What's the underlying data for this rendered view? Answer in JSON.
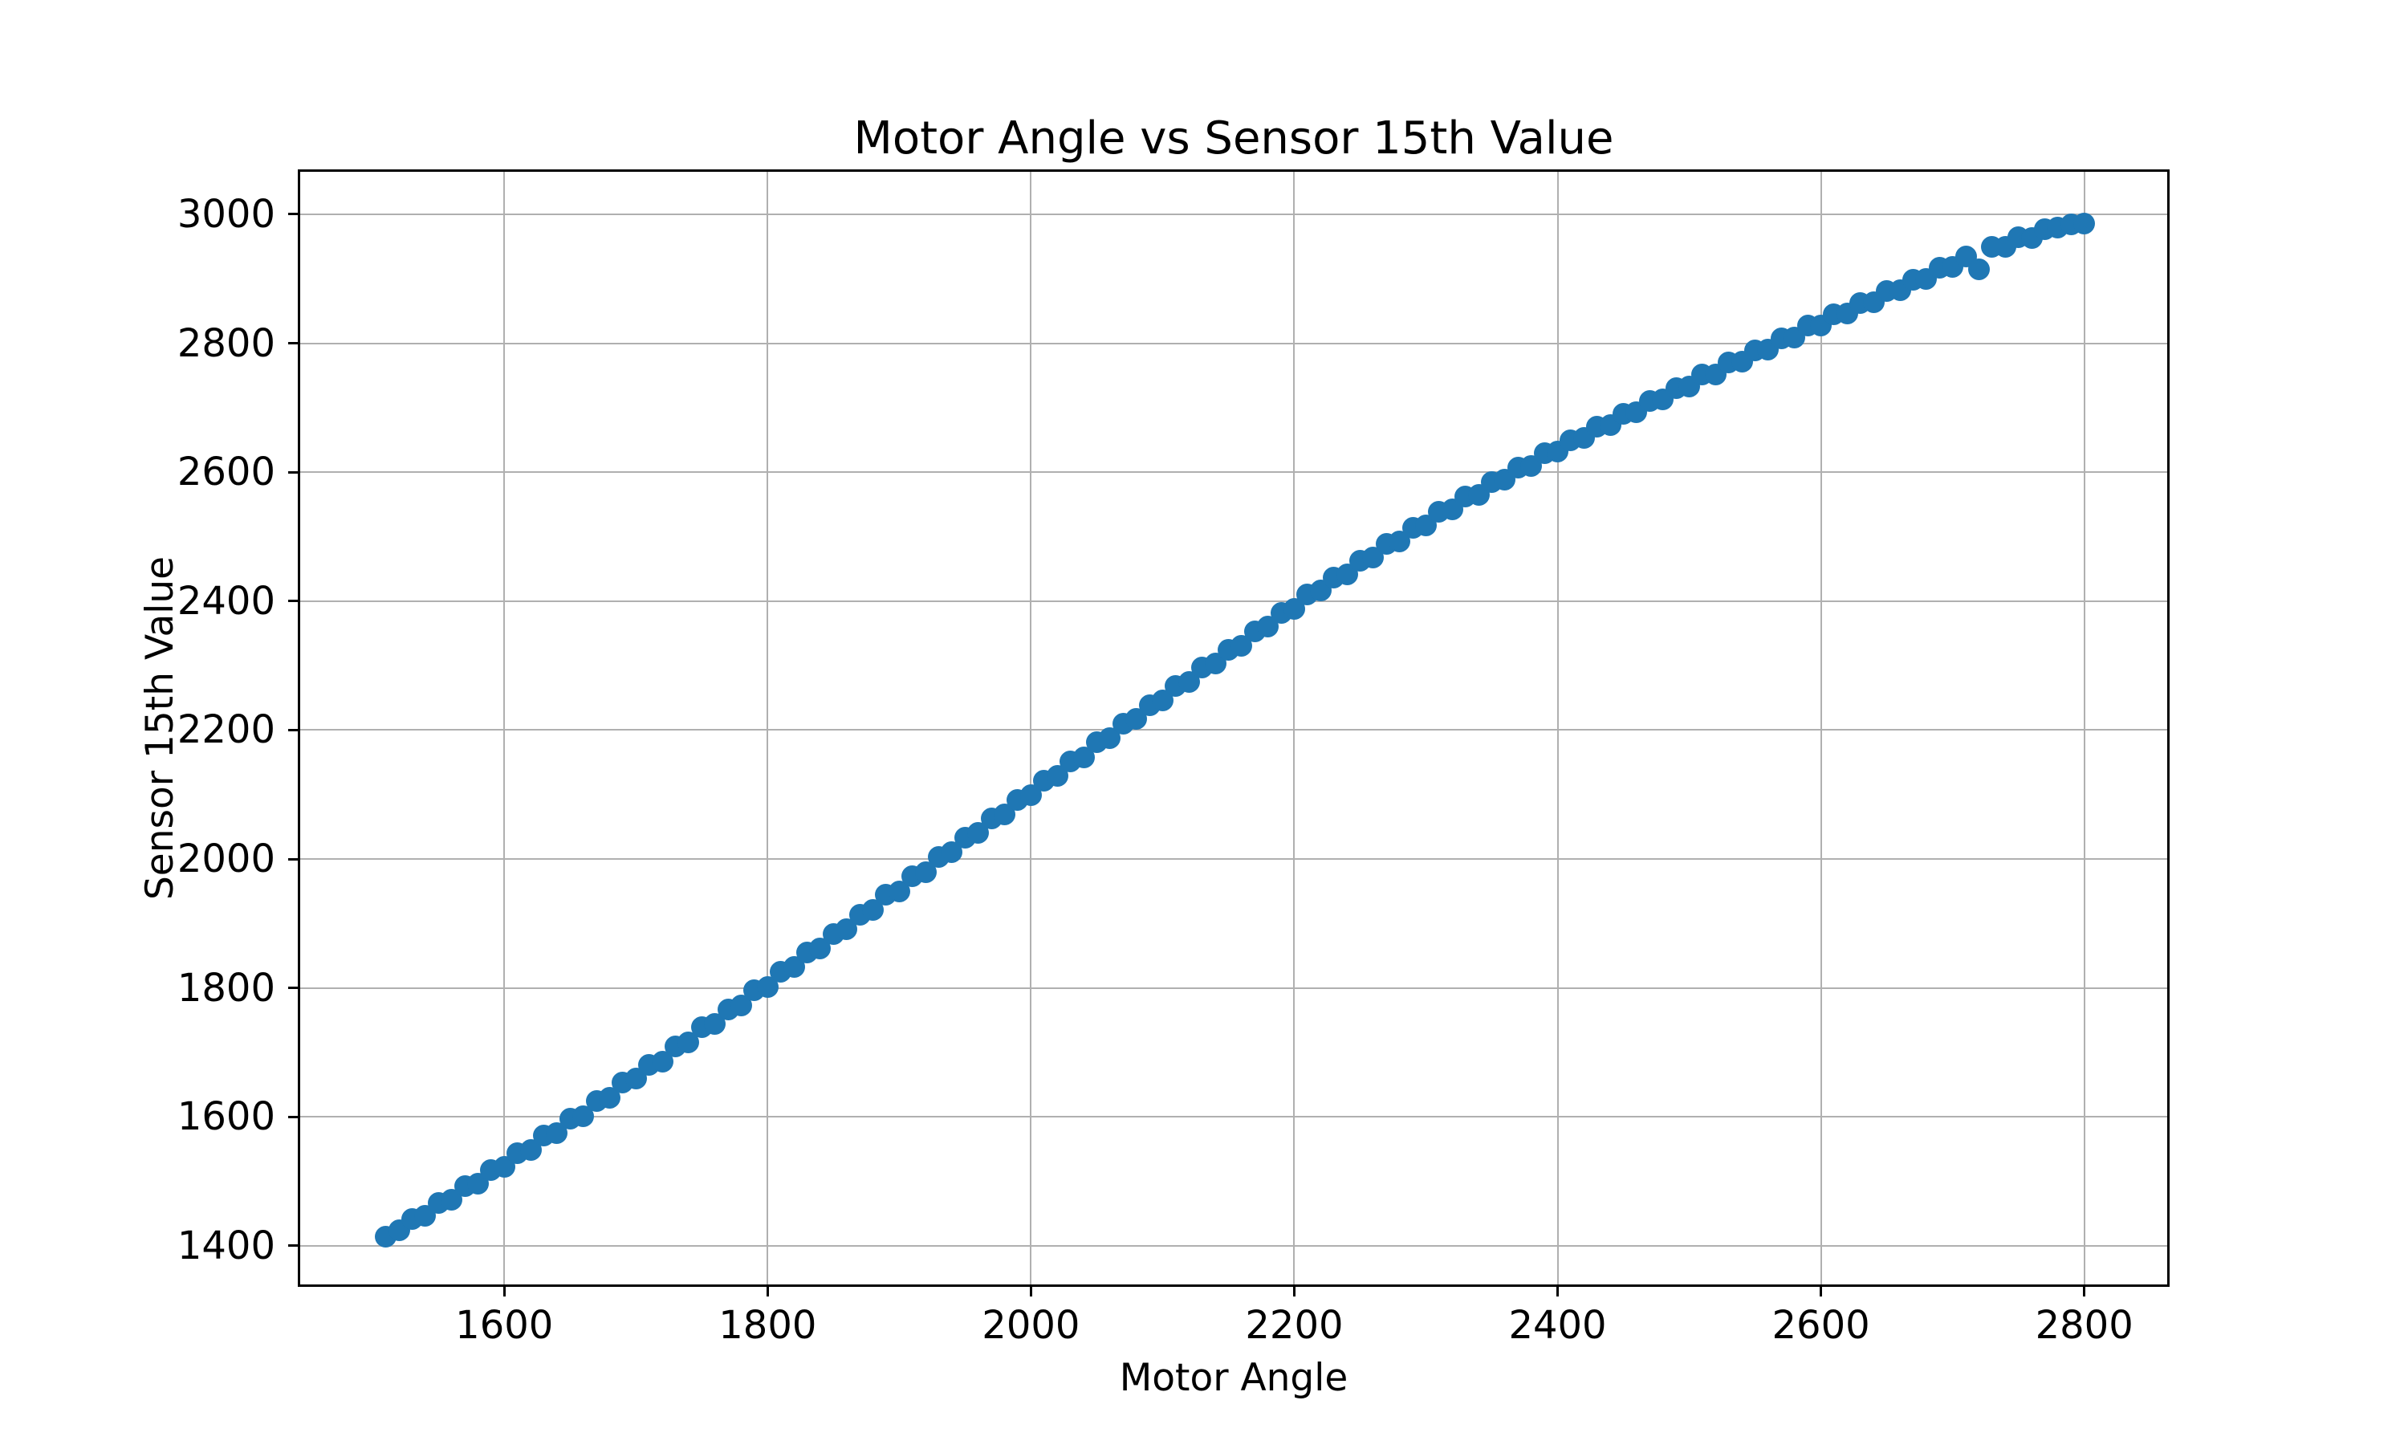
{
  "figure": {
    "background": "#ffffff"
  },
  "chart_data": {
    "type": "scatter",
    "title": "Motor Angle vs Sensor 15th Value",
    "xlabel": "Motor Angle",
    "ylabel": "Sensor 15th Value",
    "xlim": [
      1445,
      2863
    ],
    "ylim": [
      1340,
      3066
    ],
    "xticks": [
      1600,
      1800,
      2000,
      2200,
      2400,
      2600,
      2800
    ],
    "yticks": [
      1400,
      1600,
      1800,
      2000,
      2200,
      2400,
      2600,
      2800,
      3000
    ],
    "grid": true,
    "legend": null,
    "grid_color": "#b0b0b0",
    "marker_color": "#1f77b4",
    "marker_diameter_px": 27,
    "points": [
      [
        1510,
        1414
      ],
      [
        1520,
        1424
      ],
      [
        1530,
        1441
      ],
      [
        1540,
        1447
      ],
      [
        1550,
        1467
      ],
      [
        1560,
        1471
      ],
      [
        1570,
        1492
      ],
      [
        1580,
        1496
      ],
      [
        1590,
        1517
      ],
      [
        1600,
        1522
      ],
      [
        1610,
        1543
      ],
      [
        1620,
        1549
      ],
      [
        1630,
        1571
      ],
      [
        1640,
        1575
      ],
      [
        1650,
        1597
      ],
      [
        1660,
        1601
      ],
      [
        1670,
        1624
      ],
      [
        1680,
        1630
      ],
      [
        1690,
        1653
      ],
      [
        1700,
        1659
      ],
      [
        1710,
        1680
      ],
      [
        1720,
        1686
      ],
      [
        1730,
        1709
      ],
      [
        1740,
        1715
      ],
      [
        1750,
        1739
      ],
      [
        1760,
        1744
      ],
      [
        1770,
        1767
      ],
      [
        1780,
        1773
      ],
      [
        1790,
        1796
      ],
      [
        1800,
        1802
      ],
      [
        1810,
        1825
      ],
      [
        1820,
        1832
      ],
      [
        1830,
        1855
      ],
      [
        1840,
        1861
      ],
      [
        1850,
        1884
      ],
      [
        1860,
        1891
      ],
      [
        1870,
        1914
      ],
      [
        1880,
        1921
      ],
      [
        1890,
        1944
      ],
      [
        1900,
        1950
      ],
      [
        1910,
        1973
      ],
      [
        1920,
        1980
      ],
      [
        1930,
        2003
      ],
      [
        1940,
        2010
      ],
      [
        1950,
        2033
      ],
      [
        1960,
        2040
      ],
      [
        1970,
        2063
      ],
      [
        1980,
        2069
      ],
      [
        1990,
        2092
      ],
      [
        2000,
        2099
      ],
      [
        2010,
        2122
      ],
      [
        2020,
        2129
      ],
      [
        2030,
        2151
      ],
      [
        2040,
        2158
      ],
      [
        2050,
        2181
      ],
      [
        2060,
        2187
      ],
      [
        2070,
        2210
      ],
      [
        2080,
        2217
      ],
      [
        2090,
        2239
      ],
      [
        2100,
        2246
      ],
      [
        2110,
        2268
      ],
      [
        2120,
        2274
      ],
      [
        2130,
        2297
      ],
      [
        2140,
        2303
      ],
      [
        2150,
        2325
      ],
      [
        2160,
        2331
      ],
      [
        2170,
        2353
      ],
      [
        2180,
        2360
      ],
      [
        2190,
        2382
      ],
      [
        2200,
        2388
      ],
      [
        2210,
        2410
      ],
      [
        2220,
        2416
      ],
      [
        2230,
        2437
      ],
      [
        2240,
        2442
      ],
      [
        2250,
        2463
      ],
      [
        2260,
        2468
      ],
      [
        2270,
        2489
      ],
      [
        2280,
        2493
      ],
      [
        2290,
        2514
      ],
      [
        2300,
        2518
      ],
      [
        2310,
        2538
      ],
      [
        2320,
        2542
      ],
      [
        2330,
        2562
      ],
      [
        2340,
        2565
      ],
      [
        2350,
        2585
      ],
      [
        2360,
        2588
      ],
      [
        2370,
        2607
      ],
      [
        2380,
        2610
      ],
      [
        2390,
        2629
      ],
      [
        2400,
        2632
      ],
      [
        2410,
        2650
      ],
      [
        2420,
        2653
      ],
      [
        2430,
        2671
      ],
      [
        2440,
        2673
      ],
      [
        2450,
        2691
      ],
      [
        2460,
        2693
      ],
      [
        2470,
        2711
      ],
      [
        2480,
        2713
      ],
      [
        2490,
        2731
      ],
      [
        2500,
        2733
      ],
      [
        2510,
        2751
      ],
      [
        2520,
        2752
      ],
      [
        2530,
        2770
      ],
      [
        2540,
        2771
      ],
      [
        2550,
        2789
      ],
      [
        2560,
        2790
      ],
      [
        2570,
        2808
      ],
      [
        2580,
        2809
      ],
      [
        2590,
        2827
      ],
      [
        2600,
        2828
      ],
      [
        2610,
        2845
      ],
      [
        2620,
        2846
      ],
      [
        2630,
        2863
      ],
      [
        2640,
        2864
      ],
      [
        2650,
        2881
      ],
      [
        2660,
        2882
      ],
      [
        2670,
        2899
      ],
      [
        2680,
        2900
      ],
      [
        2690,
        2917
      ],
      [
        2700,
        2918
      ],
      [
        2710,
        2934
      ],
      [
        2720,
        2915
      ],
      [
        2730,
        2950
      ],
      [
        2740,
        2949
      ],
      [
        2750,
        2964
      ],
      [
        2760,
        2963
      ],
      [
        2770,
        2977
      ],
      [
        2780,
        2979
      ],
      [
        2790,
        2984
      ],
      [
        2800,
        2986
      ]
    ]
  }
}
